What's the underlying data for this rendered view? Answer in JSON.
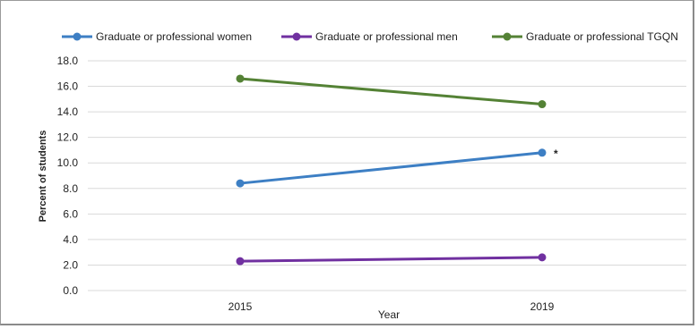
{
  "chart_data": {
    "type": "line",
    "x": [
      "2015",
      "2019"
    ],
    "series": [
      {
        "name": "Graduate or professional women",
        "values": [
          8.4,
          10.8
        ],
        "color": "#3d7fc4"
      },
      {
        "name": "Graduate or professional men",
        "values": [
          2.3,
          2.6
        ],
        "color": "#7030a0"
      },
      {
        "name": "Graduate or professional TGQN",
        "values": [
          16.6,
          14.6
        ],
        "color": "#548235"
      }
    ],
    "xlabel": "Year",
    "ylabel": "Percent of students",
    "ylim": [
      0,
      18
    ],
    "yticks": [
      "0.0",
      "2.0",
      "4.0",
      "6.0",
      "8.0",
      "10.0",
      "12.0",
      "14.0",
      "16.0",
      "18.0"
    ],
    "grid": true,
    "legend_position": "top",
    "annotations": [
      {
        "text": "*",
        "series": "Graduate or professional women",
        "x": "2019"
      }
    ]
  }
}
